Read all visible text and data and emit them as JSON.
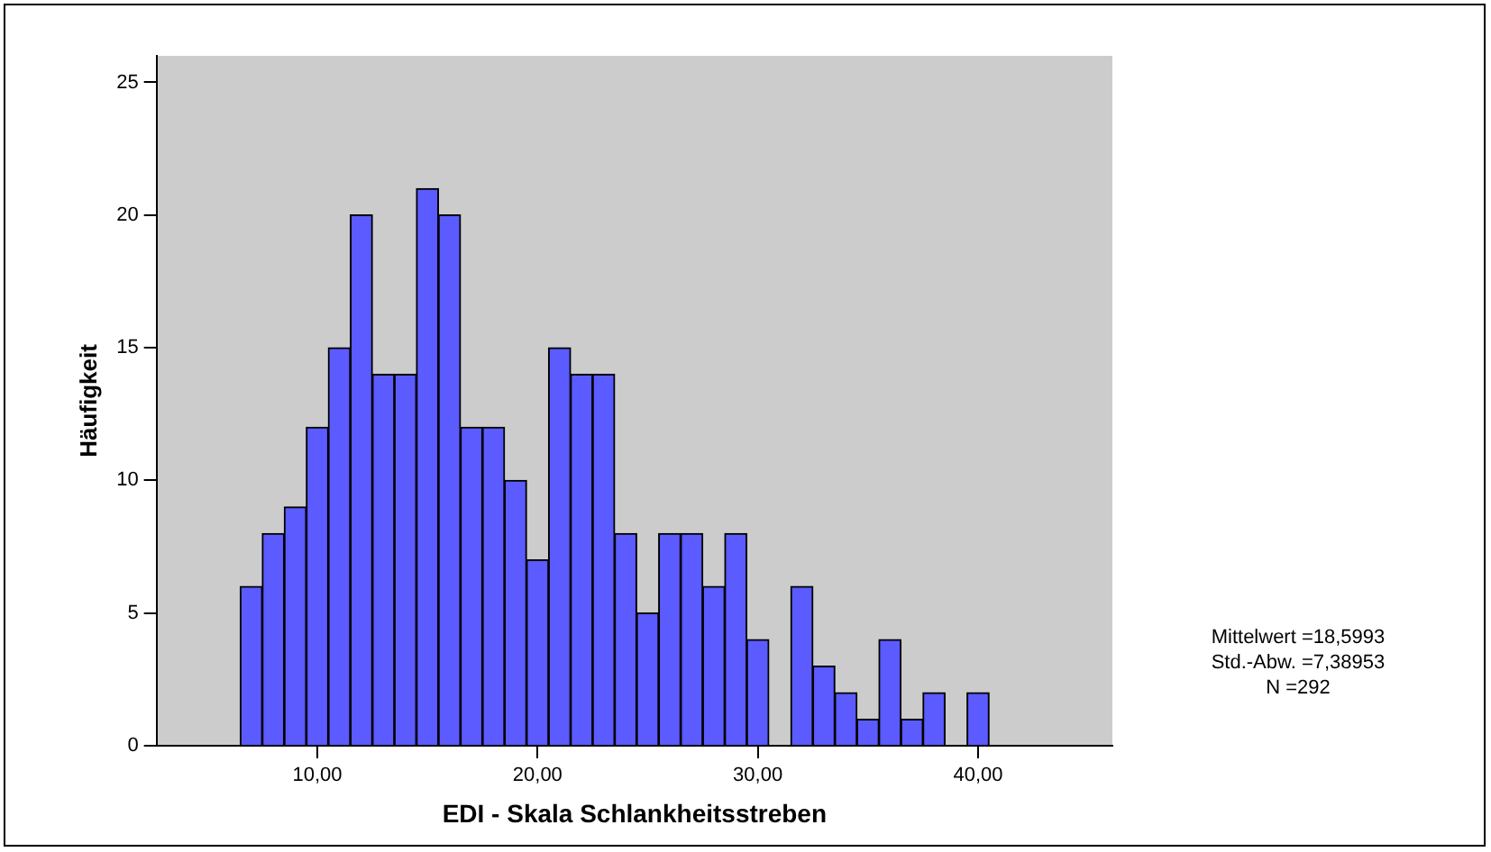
{
  "chart_data": {
    "type": "histogram",
    "xlabel": "EDI - Skala Schlankheitsstreben",
    "ylabel": "Häufigkeit",
    "bins": [
      6.5,
      7.5,
      8.5,
      9.5,
      10.5,
      11.5,
      12.5,
      13.5,
      14.5,
      15.5,
      16.5,
      17.5,
      18.5,
      19.5,
      20.5,
      21.5,
      22.5,
      23.5,
      24.5,
      25.5,
      26.5,
      27.5,
      28.5,
      29.5,
      30.5,
      31.5,
      32.5,
      33.5,
      34.5,
      35.5,
      36.5,
      37.5,
      38.5,
      39.5,
      40.5
    ],
    "values": [
      6,
      8,
      9,
      12,
      15,
      20,
      14,
      14,
      21,
      20,
      12,
      12,
      10,
      7,
      15,
      14,
      14,
      8,
      5,
      8,
      8,
      6,
      8,
      4,
      0,
      6,
      3,
      2,
      1,
      4,
      1,
      2,
      0,
      2
    ],
    "color": "#5b5bff",
    "xlim": [
      2.7,
      46.1
    ],
    "ylim": [
      0,
      26
    ],
    "xticks": [
      {
        "value": 10,
        "label": "10,00"
      },
      {
        "value": 20,
        "label": "20,00"
      },
      {
        "value": 30,
        "label": "30,00"
      },
      {
        "value": 40,
        "label": "40,00"
      }
    ],
    "yticks": [
      0,
      5,
      10,
      15,
      20,
      25
    ],
    "grid": false,
    "legend": false,
    "annotations": [
      "Mittelwert =18,5993",
      "Std.-Abw. =7,38953",
      "N =292"
    ]
  }
}
